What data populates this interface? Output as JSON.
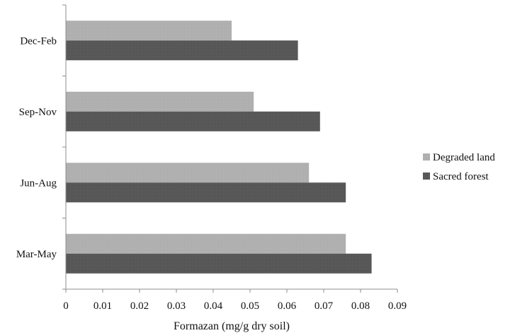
{
  "chart_data": {
    "type": "bar",
    "orientation": "horizontal",
    "categories": [
      "Dec-Feb",
      "Sep-Nov",
      "Jun-Aug",
      "Mar-May"
    ],
    "series": [
      {
        "name": "Degraded land",
        "values": [
          0.045,
          0.051,
          0.066,
          0.076
        ],
        "color": "#b3b3b3"
      },
      {
        "name": "Sacred forest",
        "values": [
          0.063,
          0.069,
          0.076,
          0.083
        ],
        "color": "#5a5a5a"
      }
    ],
    "title": "",
    "xlabel": "Formazan (mg/g dry soil)",
    "ylabel": "",
    "xlim": [
      0,
      0.09
    ],
    "xticks": [
      "0",
      "0.01",
      "0.02",
      "0.03",
      "0.04",
      "0.05",
      "0.06",
      "0.07",
      "0.08",
      "0.09"
    ],
    "grid": false,
    "legend_position": "right"
  }
}
